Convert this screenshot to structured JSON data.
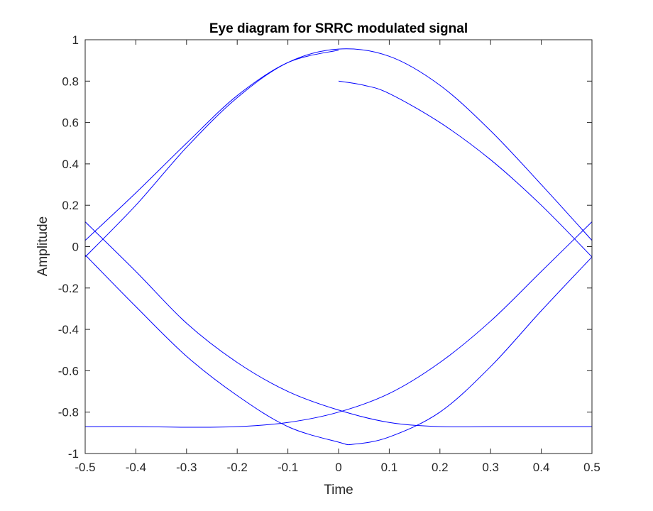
{
  "chart_data": {
    "type": "line",
    "title": "Eye diagram for SRRC modulated signal",
    "xlabel": "Time",
    "ylabel": "Amplitude",
    "xlim": [
      -0.5,
      0.5
    ],
    "ylim": [
      -1,
      1
    ],
    "xticks": [
      -0.5,
      -0.4,
      -0.3,
      -0.2,
      -0.1,
      0,
      0.1,
      0.2,
      0.3,
      0.4,
      0.5
    ],
    "xtick_labels": [
      "-0.5",
      "-0.4",
      "-0.3",
      "-0.2",
      "-0.1",
      "0",
      "0.1",
      "0.2",
      "0.3",
      "0.4",
      "0.5"
    ],
    "yticks": [
      -1,
      -0.8,
      -0.6,
      -0.4,
      -0.2,
      0,
      0.2,
      0.4,
      0.6,
      0.8,
      1
    ],
    "ytick_labels": [
      "-1",
      "-0.8",
      "-0.6",
      "-0.4",
      "-0.2",
      "0",
      "0.2",
      "0.4",
      "0.6",
      "0.8",
      "1"
    ],
    "grid": false,
    "line_color": "#0000ff",
    "traces": [
      {
        "x": [
          -0.5,
          -0.4,
          -0.3,
          -0.2,
          -0.1,
          0.0,
          0.1,
          0.2,
          0.3,
          0.4,
          0.5
        ],
        "y": [
          -0.05,
          0.2,
          0.48,
          0.72,
          0.89,
          0.955,
          0.92,
          0.78,
          0.56,
          0.3,
          0.03
        ]
      },
      {
        "x": [
          -0.5,
          -0.4,
          -0.3,
          -0.2,
          -0.1,
          0.0
        ],
        "y": [
          0.03,
          0.26,
          0.5,
          0.73,
          0.89,
          0.95
        ]
      },
      {
        "x": [
          0.0,
          0.05,
          0.1,
          0.2,
          0.3,
          0.4,
          0.5
        ],
        "y": [
          0.8,
          0.78,
          0.74,
          0.6,
          0.42,
          0.2,
          -0.05
        ]
      },
      {
        "x": [
          -0.5,
          -0.4,
          -0.3,
          -0.2,
          -0.1,
          0.0,
          0.1,
          0.2,
          0.3,
          0.4,
          0.5
        ],
        "y": [
          0.12,
          -0.12,
          -0.37,
          -0.56,
          -0.7,
          -0.79,
          -0.85,
          -0.87,
          -0.87,
          -0.87,
          -0.87
        ]
      },
      {
        "x": [
          -0.5,
          -0.4,
          -0.3,
          -0.2,
          -0.1,
          0.0,
          0.03,
          0.1,
          0.2,
          0.3,
          0.4,
          0.5
        ],
        "y": [
          -0.04,
          -0.29,
          -0.53,
          -0.72,
          -0.87,
          -0.945,
          -0.955,
          -0.92,
          -0.8,
          -0.58,
          -0.31,
          -0.05
        ]
      },
      {
        "x": [
          -0.5,
          -0.4,
          -0.3,
          -0.2,
          -0.1,
          0.0,
          0.1,
          0.2,
          0.3,
          0.4,
          0.5
        ],
        "y": [
          -0.87,
          -0.87,
          -0.873,
          -0.87,
          -0.85,
          -0.8,
          -0.71,
          -0.56,
          -0.36,
          -0.12,
          0.12
        ]
      }
    ]
  }
}
